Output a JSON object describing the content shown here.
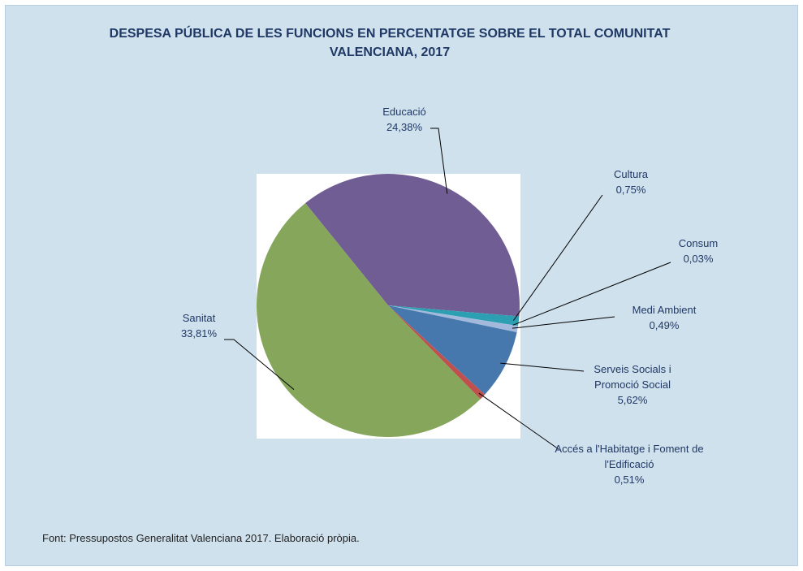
{
  "chart_data": {
    "type": "pie",
    "title": "DESPESA PÚBLICA DE LES FUNCIONS EN PERCENTATGE SOBRE EL TOTAL COMUNITAT VALENCIANA, 2017",
    "categories": [
      "Educació",
      "Cultura",
      "Consum",
      "Medi Ambient",
      "Serveis Socials i Promoció Social",
      "Accés a l'Habitatge i Foment de l'Edificació",
      "Sanitat"
    ],
    "values": [
      24.38,
      0.75,
      0.03,
      0.49,
      5.62,
      0.51,
      33.81
    ],
    "value_labels": [
      "24,38%",
      "0,75%",
      "0,03%",
      "0,49%",
      "5,62%",
      "0,51%",
      "33,81%"
    ],
    "colors": [
      "#705d93",
      "#2d9fb3",
      "#7f9fcf",
      "#a3b9dc",
      "#4677ad",
      "#c0504d",
      "#86a65b"
    ],
    "source": "Font: Pressupostos Generalitat Valenciana 2017. Elaboració pròpia."
  }
}
